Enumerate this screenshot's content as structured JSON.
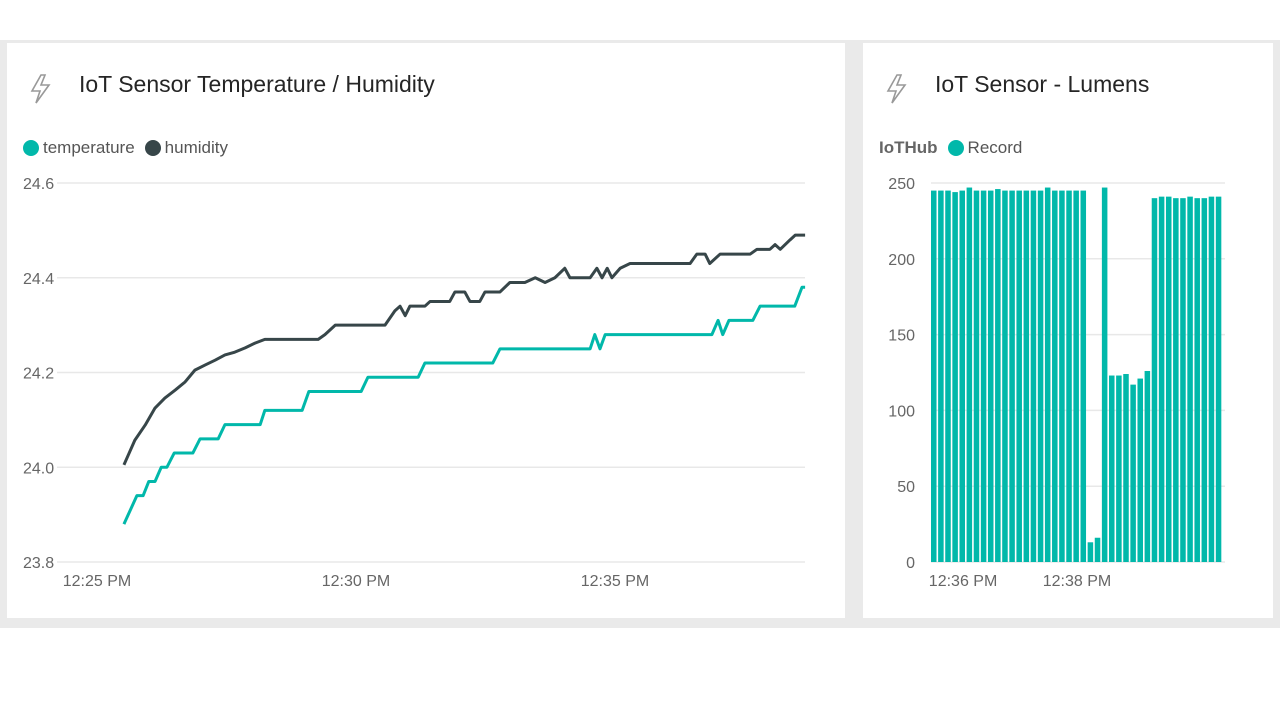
{
  "colors": {
    "teal": "#01b8aa",
    "dark": "#374649",
    "grid": "#e8e8e8",
    "axis": "#666666"
  },
  "chart_data": [
    {
      "type": "line",
      "title": "IoT Sensor Temperature / Humidity",
      "icon": "lightning-icon",
      "ylim": [
        23.8,
        24.6
      ],
      "yticks": [
        "24.6",
        "24.4",
        "24.2",
        "24.0",
        "23.8"
      ],
      "ytick_values": [
        24.6,
        24.4,
        24.2,
        24.0,
        23.8
      ],
      "xlabel_unit": "minutes after 12:25 PM",
      "xlim": [
        -0.6,
        13.7
      ],
      "xticks": [
        {
          "label": "12:25 PM",
          "x": 0
        },
        {
          "label": "12:30 PM",
          "x": 5
        },
        {
          "label": "12:35 PM",
          "x": 10
        }
      ],
      "legend": "top-left",
      "series": [
        {
          "name": "temperature",
          "color": "#01b8aa",
          "points": [
            [
              0.52,
              23.88
            ],
            [
              0.77,
              23.94
            ],
            [
              0.89,
              23.94
            ],
            [
              1.0,
              23.97
            ],
            [
              1.12,
              23.97
            ],
            [
              1.24,
              24.0
            ],
            [
              1.35,
              24.0
            ],
            [
              1.49,
              24.03
            ],
            [
              1.85,
              24.03
            ],
            [
              1.99,
              24.06
            ],
            [
              2.34,
              24.06
            ],
            [
              2.47,
              24.09
            ],
            [
              3.15,
              24.09
            ],
            [
              3.24,
              24.12
            ],
            [
              3.96,
              24.12
            ],
            [
              4.09,
              24.16
            ],
            [
              5.1,
              24.16
            ],
            [
              5.23,
              24.19
            ],
            [
              6.2,
              24.19
            ],
            [
              6.33,
              24.22
            ],
            [
              7.64,
              24.22
            ],
            [
              7.78,
              24.25
            ],
            [
              9.52,
              24.25
            ],
            [
              9.61,
              24.28
            ],
            [
              9.71,
              24.25
            ],
            [
              9.81,
              24.28
            ],
            [
              11.87,
              24.28
            ],
            [
              11.99,
              24.31
            ],
            [
              12.08,
              24.28
            ],
            [
              12.2,
              24.31
            ],
            [
              12.66,
              24.31
            ],
            [
              12.8,
              24.34
            ],
            [
              13.47,
              24.34
            ],
            [
              13.61,
              24.38
            ],
            [
              13.67,
              24.38
            ]
          ]
        },
        {
          "name": "humidity",
          "color": "#374649",
          "points": [
            [
              0.52,
              24.005
            ],
            [
              0.73,
              24.057
            ],
            [
              0.93,
              24.089
            ],
            [
              1.12,
              24.125
            ],
            [
              1.31,
              24.146
            ],
            [
              1.51,
              24.163
            ],
            [
              1.7,
              24.18
            ],
            [
              1.89,
              24.205
            ],
            [
              2.09,
              24.216
            ],
            [
              2.28,
              24.226
            ],
            [
              2.47,
              24.237
            ],
            [
              2.66,
              24.243
            ],
            [
              2.86,
              24.252
            ],
            [
              3.05,
              24.262
            ],
            [
              3.24,
              24.27
            ],
            [
              4.27,
              24.27
            ],
            [
              4.4,
              24.28
            ],
            [
              4.6,
              24.3
            ],
            [
              5.56,
              24.3
            ],
            [
              5.75,
              24.33
            ],
            [
              5.85,
              24.34
            ],
            [
              5.95,
              24.32
            ],
            [
              6.04,
              24.34
            ],
            [
              6.33,
              24.34
            ],
            [
              6.43,
              24.35
            ],
            [
              6.81,
              24.35
            ],
            [
              6.91,
              24.37
            ],
            [
              7.1,
              24.37
            ],
            [
              7.2,
              24.35
            ],
            [
              7.39,
              24.35
            ],
            [
              7.49,
              24.37
            ],
            [
              7.78,
              24.37
            ],
            [
              7.97,
              24.39
            ],
            [
              8.26,
              24.39
            ],
            [
              8.46,
              24.4
            ],
            [
              8.65,
              24.39
            ],
            [
              8.84,
              24.4
            ],
            [
              9.03,
              24.42
            ],
            [
              9.13,
              24.4
            ],
            [
              9.52,
              24.4
            ],
            [
              9.65,
              24.42
            ],
            [
              9.75,
              24.4
            ],
            [
              9.85,
              24.42
            ],
            [
              9.94,
              24.4
            ],
            [
              10.1,
              24.42
            ],
            [
              10.29,
              24.43
            ],
            [
              11.45,
              24.43
            ],
            [
              11.58,
              24.45
            ],
            [
              11.74,
              24.45
            ],
            [
              11.83,
              24.43
            ],
            [
              12.03,
              24.45
            ],
            [
              12.61,
              24.45
            ],
            [
              12.74,
              24.46
            ],
            [
              12.99,
              24.46
            ],
            [
              13.09,
              24.47
            ],
            [
              13.19,
              24.46
            ],
            [
              13.38,
              24.48
            ],
            [
              13.48,
              24.49
            ],
            [
              13.67,
              24.49
            ]
          ]
        }
      ]
    },
    {
      "type": "bar",
      "title": "IoT Sensor - Lumens",
      "icon": "lightning-icon",
      "legend_title": "IoTHub",
      "legend": [
        {
          "name": "Record",
          "color": "#01b8aa"
        }
      ],
      "ylim": [
        0,
        250
      ],
      "yticks": [
        "250",
        "200",
        "150",
        "100",
        "50",
        "0"
      ],
      "ytick_values": [
        250,
        200,
        150,
        100,
        50,
        0
      ],
      "xticks": [
        {
          "label": "12:36 PM",
          "index": 4.5
        },
        {
          "label": "12:38 PM",
          "index": 20.5
        }
      ],
      "values": [
        245,
        245,
        245,
        244,
        245,
        247,
        245,
        245,
        245,
        246,
        245,
        245,
        245,
        245,
        245,
        245,
        247,
        245,
        245,
        245,
        245,
        245,
        13,
        16,
        247,
        123,
        123,
        124,
        117,
        121,
        126,
        240,
        241,
        241,
        240,
        240,
        241,
        240,
        240,
        241,
        241
      ]
    }
  ]
}
